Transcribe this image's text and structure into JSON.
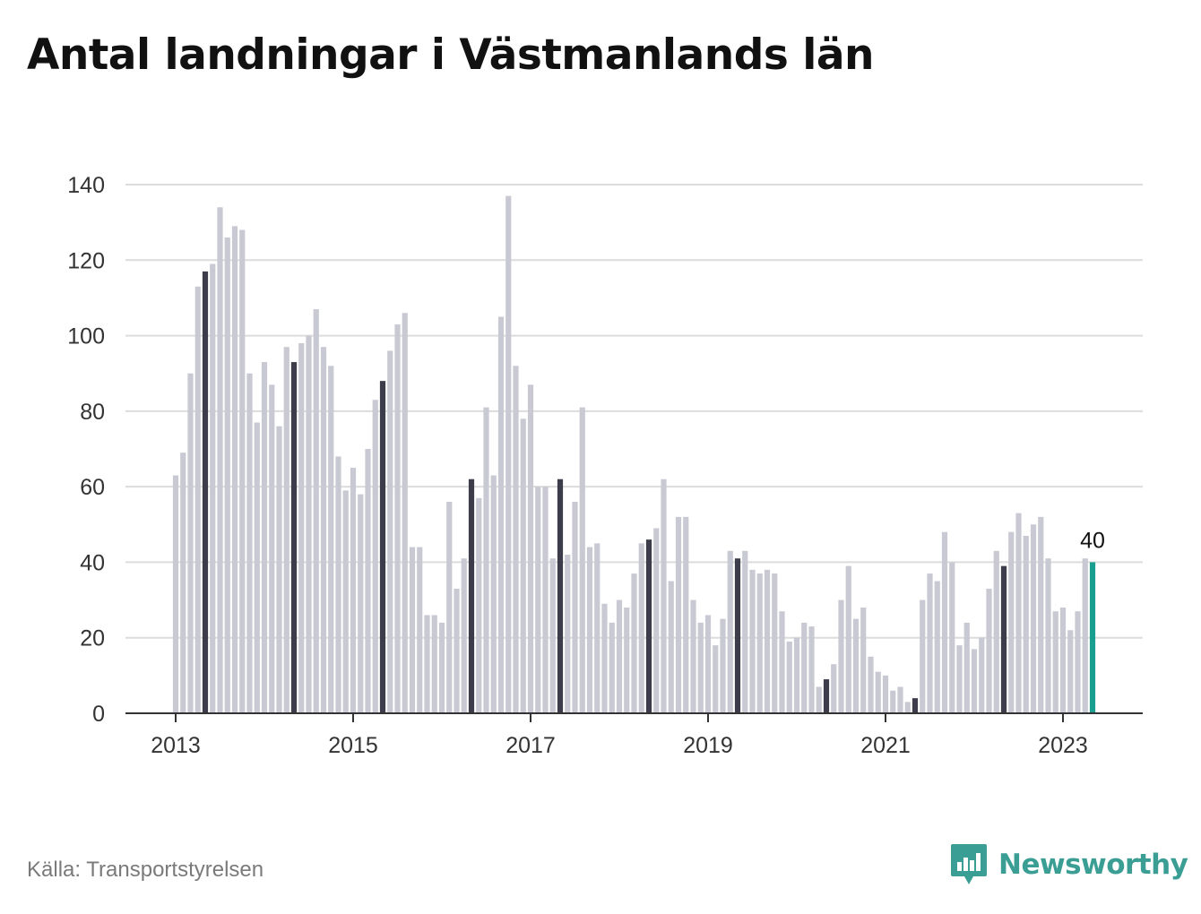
{
  "title": "Antal landningar i Västmanlands län",
  "source": "Källa: Transportstyrelsen",
  "brand": "Newsworthy",
  "colors": {
    "bar_default": "#c9c9d3",
    "bar_highlight": "#3d3c4a",
    "bar_latest": "#1a9e8f",
    "gridline": "#dcdcdc",
    "axis": "#333333",
    "brand": "#3a9e94"
  },
  "chart_data": {
    "type": "bar",
    "title": "Antal landningar i Västmanlands län",
    "xlabel": "",
    "ylabel": "",
    "ylim": [
      0,
      140
    ],
    "yticks": [
      0,
      20,
      40,
      60,
      80,
      100,
      120,
      140
    ],
    "grid": true,
    "x_tick_labels": [
      "2013",
      "2015",
      "2017",
      "2019",
      "2021",
      "2023"
    ],
    "start_month": "2013-01",
    "frequency": "monthly",
    "highlight_month": "May",
    "values": [
      63,
      69,
      90,
      113,
      117,
      119,
      134,
      126,
      129,
      128,
      90,
      77,
      93,
      87,
      76,
      97,
      93,
      98,
      100,
      107,
      97,
      92,
      68,
      59,
      65,
      58,
      70,
      83,
      88,
      96,
      103,
      106,
      44,
      44,
      26,
      26,
      24,
      56,
      33,
      41,
      62,
      57,
      81,
      63,
      105,
      137,
      92,
      78,
      87,
      60,
      60,
      41,
      62,
      42,
      56,
      81,
      44,
      45,
      29,
      24,
      30,
      28,
      37,
      45,
      46,
      49,
      62,
      35,
      52,
      52,
      30,
      24,
      26,
      18,
      25,
      43,
      41,
      43,
      38,
      37,
      38,
      37,
      27,
      19,
      20,
      24,
      23,
      7,
      9,
      13,
      30,
      39,
      25,
      28,
      15,
      11,
      10,
      6,
      7,
      3,
      4,
      30,
      37,
      35,
      48,
      40,
      18,
      24,
      17,
      20,
      33,
      43,
      39,
      48,
      53,
      47,
      50,
      52,
      41,
      27,
      28,
      22,
      27,
      41,
      40
    ],
    "last_value_label": "40"
  }
}
